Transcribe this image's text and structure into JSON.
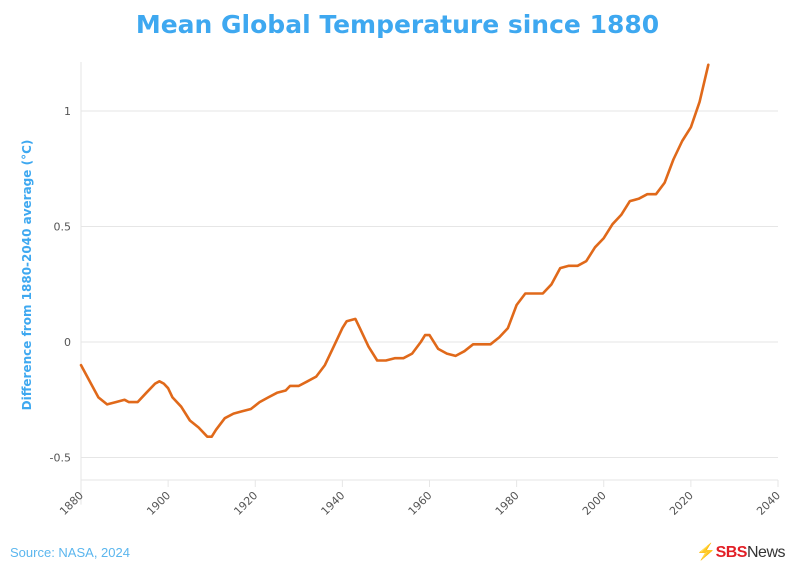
{
  "chart_data": {
    "type": "line",
    "title": "Mean Global Temperature since 1880",
    "xlabel": "",
    "ylabel": "Difference from 1880-2040 average (°C)",
    "xlim": [
      1880,
      2040
    ],
    "ylim": [
      -0.6,
      1.2
    ],
    "x_ticks": [
      "1880",
      "1900",
      "1920",
      "1940",
      "1960",
      "1980",
      "2000",
      "2020",
      "2040"
    ],
    "y_ticks": [
      "-0.5",
      "0",
      "0.5",
      "1"
    ],
    "grid": "horizontal",
    "line_color": "#e0691a",
    "x": [
      1880,
      1882,
      1884,
      1886,
      1888,
      1890,
      1891,
      1893,
      1895,
      1897,
      1898,
      1899,
      1900,
      1901,
      1903,
      1905,
      1907,
      1909,
      1910,
      1911,
      1913,
      1915,
      1917,
      1919,
      1921,
      1923,
      1925,
      1927,
      1928,
      1930,
      1932,
      1934,
      1936,
      1938,
      1940,
      1941,
      1943,
      1944,
      1946,
      1948,
      1950,
      1952,
      1954,
      1956,
      1958,
      1959,
      1960,
      1962,
      1964,
      1966,
      1968,
      1970,
      1972,
      1974,
      1976,
      1978,
      1980,
      1982,
      1984,
      1986,
      1988,
      1990,
      1992,
      1994,
      1996,
      1998,
      2000,
      2002,
      2004,
      2006,
      2008,
      2010,
      2012,
      2014,
      2016,
      2018,
      2020,
      2022,
      2024
    ],
    "y": [
      -0.1,
      -0.17,
      -0.24,
      -0.27,
      -0.26,
      -0.25,
      -0.26,
      -0.26,
      -0.22,
      -0.18,
      -0.17,
      -0.18,
      -0.2,
      -0.24,
      -0.28,
      -0.34,
      -0.37,
      -0.41,
      -0.41,
      -0.38,
      -0.33,
      -0.31,
      -0.3,
      -0.29,
      -0.26,
      -0.24,
      -0.22,
      -0.21,
      -0.19,
      -0.19,
      -0.17,
      -0.15,
      -0.1,
      -0.02,
      0.06,
      0.09,
      0.1,
      0.06,
      -0.02,
      -0.08,
      -0.08,
      -0.07,
      -0.07,
      -0.05,
      0.0,
      0.03,
      0.03,
      -0.03,
      -0.05,
      -0.06,
      -0.04,
      -0.01,
      -0.01,
      -0.01,
      0.02,
      0.06,
      0.16,
      0.21,
      0.21,
      0.21,
      0.25,
      0.32,
      0.33,
      0.33,
      0.35,
      0.41,
      0.45,
      0.51,
      0.55,
      0.61,
      0.62,
      0.64,
      0.64,
      0.69,
      0.79,
      0.87,
      0.93,
      1.04,
      1.2
    ]
  },
  "footer": {
    "source": "Source: NASA, 2024",
    "logo_text": "SBS News",
    "logo_sbs": "SBS",
    "logo_news": "News"
  },
  "colors": {
    "title": "#3ea8f0",
    "line": "#e0691a",
    "grid": "#e6e6e6"
  }
}
